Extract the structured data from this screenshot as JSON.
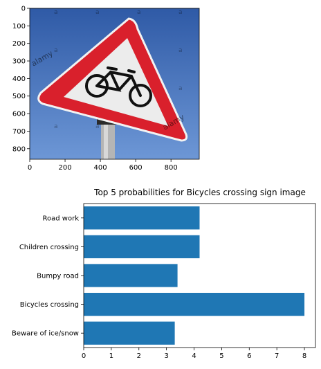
{
  "chart_data": [
    {
      "type": "image",
      "description": "Warning sign photo (triangular red sign with bicycle symbol) displayed with pixel axes",
      "xticks": [
        0,
        200,
        400,
        600,
        800
      ],
      "yticks": [
        0,
        100,
        200,
        300,
        400,
        500,
        600,
        700,
        800
      ],
      "xlim": [
        0,
        960
      ],
      "ylim": [
        860,
        0
      ],
      "watermark": "alamy",
      "colors": {
        "sky": "#3f6fb8",
        "sign_red": "#d9202c",
        "sign_white": "#efefef",
        "pole": "#b8b8b8"
      }
    },
    {
      "type": "bar",
      "orientation": "horizontal",
      "title": "Top 5 probabilities for Bicycles crossing sign image",
      "categories": [
        "Road work",
        "Children crossing",
        "Bumpy road",
        "Bicycles crossing",
        "Beware of ice/snow"
      ],
      "values": [
        4.2,
        4.2,
        3.4,
        8.0,
        3.3
      ],
      "xticks": [
        0,
        1,
        2,
        3,
        4,
        5,
        6,
        7,
        8
      ],
      "xlim": [
        0,
        8.4
      ],
      "bar_color": "#1f77b4"
    }
  ]
}
